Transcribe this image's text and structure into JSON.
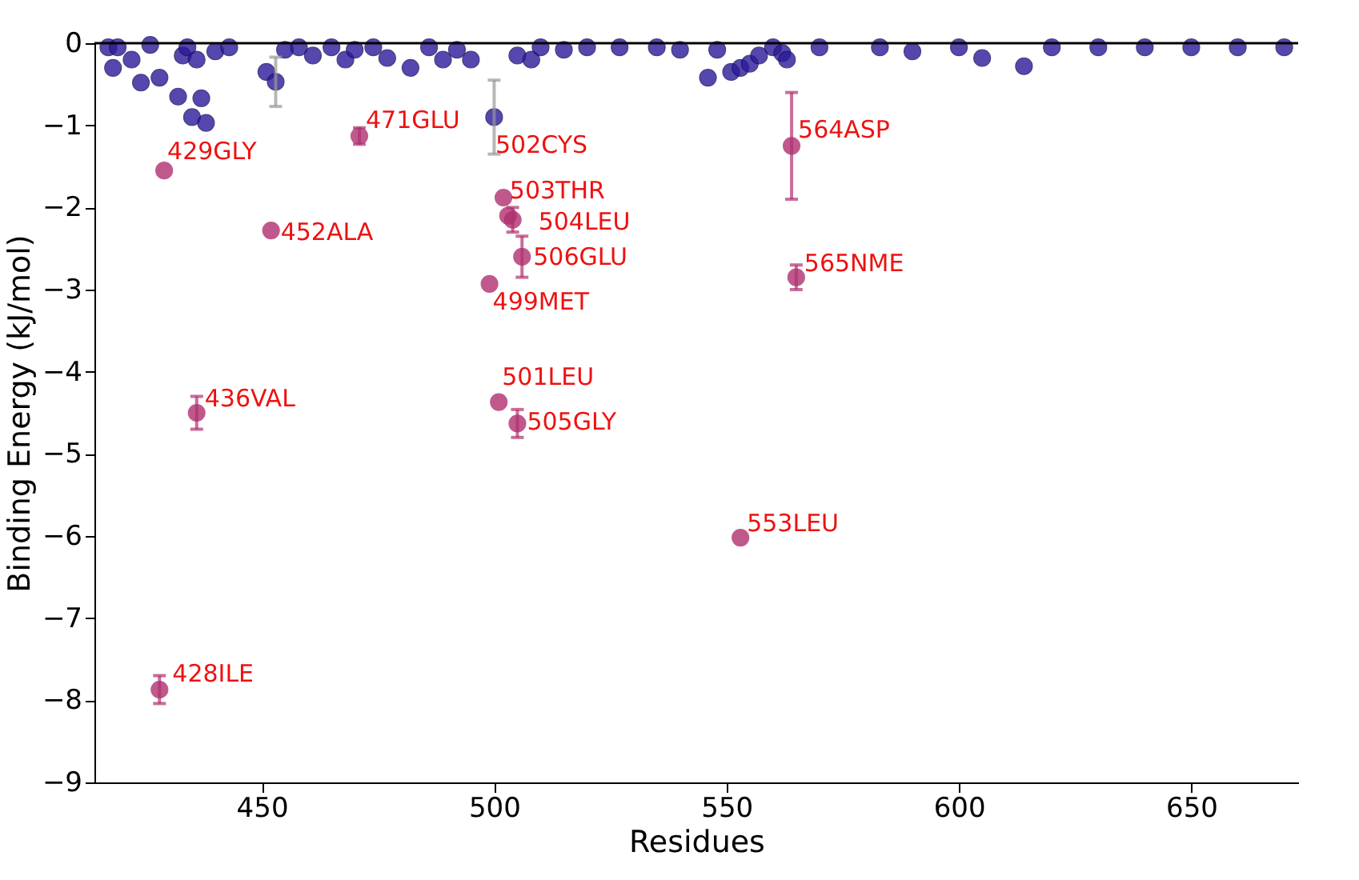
{
  "chart_data": {
    "type": "scatter",
    "xlabel": "Residues",
    "ylabel": "Binding Energy (kJ/mol)",
    "xlim": [
      414,
      673
    ],
    "ylim": [
      -9,
      0
    ],
    "xticks": [
      450,
      500,
      550,
      600,
      650
    ],
    "yticks": [
      -9,
      -8,
      -7,
      -6,
      -5,
      -4,
      -3,
      -2,
      -1,
      0
    ],
    "grid": false,
    "marker": "circle",
    "series": [
      {
        "color": "#2a1a9a",
        "x": [
          417,
          418,
          419,
          422,
          424,
          426,
          428,
          432,
          433,
          434,
          435,
          436,
          437,
          438,
          440,
          443,
          451,
          453,
          455,
          458,
          461,
          465,
          468,
          470,
          474,
          477,
          482,
          486,
          489,
          492,
          495,
          500,
          505,
          508,
          510,
          515,
          520,
          527,
          535,
          540,
          546,
          548,
          551,
          553,
          555,
          557,
          560,
          562,
          563,
          570,
          583,
          590,
          600,
          605,
          614,
          620,
          630,
          640,
          650,
          660,
          670
        ],
        "values": [
          -0.05,
          -0.3,
          -0.05,
          -0.2,
          -0.48,
          -0.02,
          -0.42,
          -0.65,
          -0.15,
          -0.05,
          -0.9,
          -0.2,
          -0.67,
          -0.97,
          -0.1,
          -0.05,
          -0.35,
          -0.47,
          -0.08,
          -0.05,
          -0.15,
          -0.05,
          -0.2,
          -0.08,
          -0.05,
          -0.18,
          -0.3,
          -0.05,
          -0.2,
          -0.08,
          -0.2,
          -0.9,
          -0.15,
          -0.2,
          -0.05,
          -0.08,
          -0.05,
          -0.05,
          -0.05,
          -0.08,
          -0.42,
          -0.08,
          -0.35,
          -0.3,
          -0.25,
          -0.15,
          -0.05,
          -0.12,
          -0.2,
          -0.05,
          -0.05,
          -0.1,
          -0.05,
          -0.18,
          -0.28,
          -0.05,
          -0.05,
          -0.05,
          -0.05,
          -0.05,
          -0.05
        ],
        "errors": [
          null,
          null,
          null,
          null,
          null,
          null,
          null,
          null,
          null,
          null,
          null,
          null,
          null,
          null,
          null,
          null,
          null,
          0.3,
          null,
          null,
          null,
          null,
          null,
          null,
          null,
          null,
          null,
          null,
          null,
          null,
          null,
          0.45,
          null,
          null,
          null,
          null,
          null,
          null,
          null,
          null,
          null,
          null,
          null,
          null,
          null,
          null,
          null,
          null,
          null,
          null,
          null,
          null,
          null,
          null,
          null,
          null,
          null,
          null,
          null,
          null,
          null
        ]
      },
      {
        "color": "#b03070",
        "x": [
          428,
          429,
          436,
          452,
          471,
          499,
          501,
          502,
          503,
          504,
          505,
          506,
          553,
          564,
          565
        ],
        "values": [
          -7.87,
          -1.55,
          -4.5,
          -2.28,
          -1.13,
          -2.93,
          -4.37,
          -1.88,
          -2.1,
          -2.15,
          -4.63,
          -2.6,
          -6.02,
          -1.25,
          -2.85
        ],
        "errors": [
          0.17,
          null,
          0.2,
          null,
          0.1,
          null,
          null,
          null,
          null,
          0.15,
          0.17,
          0.25,
          null,
          0.65,
          0.15
        ]
      }
    ],
    "annotations": [
      {
        "text": "428ILE",
        "x": 428,
        "y": -7.87
      },
      {
        "text": "429GLY",
        "x": 429,
        "y": -1.55
      },
      {
        "text": "436VAL",
        "x": 436,
        "y": -4.5
      },
      {
        "text": "452ALA",
        "x": 452,
        "y": -2.28
      },
      {
        "text": "471GLU",
        "x": 471,
        "y": -1.13
      },
      {
        "text": "499MET",
        "x": 499,
        "y": -2.93
      },
      {
        "text": "501LEU",
        "x": 501,
        "y": -4.37
      },
      {
        "text": "502CYS",
        "x": 502,
        "y": -1.88
      },
      {
        "text": "503THR",
        "x": 503,
        "y": -2.1
      },
      {
        "text": "504LEU",
        "x": 504,
        "y": -2.15
      },
      {
        "text": "505GLY",
        "x": 505,
        "y": -4.63
      },
      {
        "text": "506GLU",
        "x": 506,
        "y": -2.6
      },
      {
        "text": "553LEU",
        "x": 553,
        "y": -6.02
      },
      {
        "text": "564ASP",
        "x": 564,
        "y": -1.25
      },
      {
        "text": "565NME",
        "x": 565,
        "y": -2.85
      }
    ]
  }
}
